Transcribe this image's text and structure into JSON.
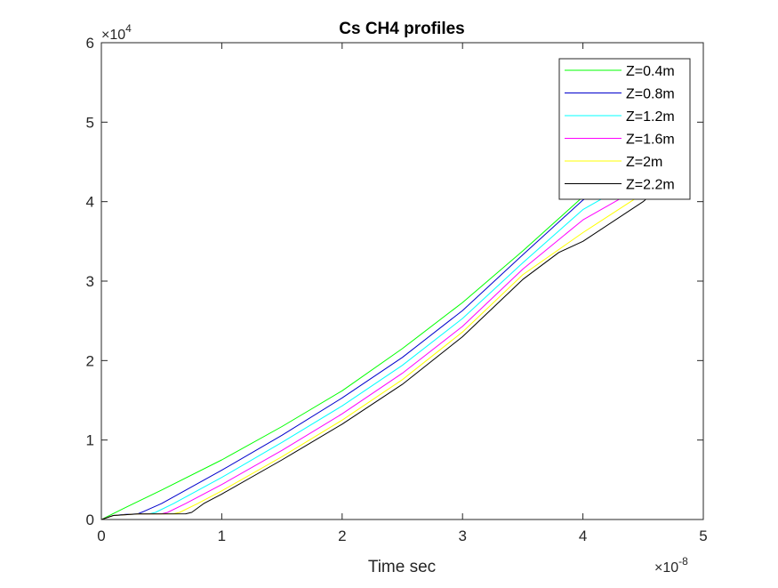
{
  "chart_data": {
    "type": "line",
    "title": "Cs CH4 profiles",
    "xlabel": "Time sec",
    "ylabel": "",
    "xlim": [
      0,
      5e-08
    ],
    "ylim": [
      0,
      60000
    ],
    "x_ticks": [
      {
        "value": 0,
        "label": "0"
      },
      {
        "value": 1e-08,
        "label": "1"
      },
      {
        "value": 2e-08,
        "label": "2"
      },
      {
        "value": 3e-08,
        "label": "3"
      },
      {
        "value": 4e-08,
        "label": "4"
      },
      {
        "value": 5e-08,
        "label": "5"
      }
    ],
    "y_ticks": [
      {
        "value": 0,
        "label": "0"
      },
      {
        "value": 10000,
        "label": "1"
      },
      {
        "value": 20000,
        "label": "2"
      },
      {
        "value": 30000,
        "label": "3"
      },
      {
        "value": 40000,
        "label": "4"
      },
      {
        "value": 50000,
        "label": "5"
      },
      {
        "value": 60000,
        "label": "6"
      }
    ],
    "x_exponent": {
      "base": "×10",
      "power": "-8"
    },
    "y_exponent": {
      "base": "×10",
      "power": "4"
    },
    "grid": false,
    "legend_position": "top-right",
    "series": [
      {
        "name": "Z=0.4m",
        "color": "#00ff00",
        "x": [
          0,
          2e-09,
          5e-09,
          1e-08,
          1.5e-08,
          2e-08,
          2.5e-08,
          3e-08,
          3.5e-08,
          4e-08,
          4.1e-08
        ],
        "y": [
          0,
          1500,
          3700,
          7500,
          11700,
          16200,
          21500,
          27300,
          33800,
          40600,
          42000
        ]
      },
      {
        "name": "Z=0.8m",
        "color": "#0000cc",
        "x": [
          0,
          1e-09,
          2e-09,
          3e-09,
          3.5e-09,
          5e-09,
          1e-08,
          1.5e-08,
          2e-08,
          2.5e-08,
          3e-08,
          3.5e-08,
          4e-08,
          4.2e-08
        ],
        "y": [
          0,
          500,
          650,
          700,
          1000,
          2000,
          6200,
          10600,
          15300,
          20400,
          26300,
          33300,
          40200,
          42000
        ]
      },
      {
        "name": "Z=1.2m",
        "color": "#00ffff",
        "x": [
          0,
          1e-09,
          3e-09,
          4e-09,
          4.5e-09,
          6e-09,
          1e-08,
          1.5e-08,
          2e-08,
          2.5e-08,
          3e-08,
          3.5e-08,
          4e-08,
          4.35e-08
        ],
        "y": [
          0,
          500,
          700,
          720,
          900,
          2000,
          5300,
          9700,
          14300,
          19400,
          25300,
          32300,
          39000,
          42000
        ]
      },
      {
        "name": "Z=1.6m",
        "color": "#ff00ff",
        "x": [
          0,
          1e-09,
          3e-09,
          5e-09,
          5.5e-09,
          7e-09,
          1e-08,
          1.5e-08,
          2e-08,
          2.5e-08,
          3e-08,
          3.5e-08,
          4e-08,
          4.5e-08
        ],
        "y": [
          0,
          500,
          700,
          720,
          900,
          2000,
          4400,
          8700,
          13300,
          18400,
          24300,
          31500,
          37700,
          42000
        ]
      },
      {
        "name": "Z=2m",
        "color": "#ffff00",
        "x": [
          0,
          1e-09,
          3e-09,
          6e-09,
          6.5e-09,
          8e-09,
          1e-08,
          1.5e-08,
          2e-08,
          2.5e-08,
          3e-08,
          3.5e-08,
          4e-08,
          4.6e-08
        ],
        "y": [
          0,
          500,
          700,
          720,
          900,
          2000,
          3600,
          7900,
          12500,
          17600,
          23600,
          30800,
          36100,
          42000
        ]
      },
      {
        "name": "Z=2.2m",
        "color": "#000000",
        "x": [
          0,
          1e-09,
          3e-09,
          7e-09,
          7.5e-09,
          8.5e-09,
          1e-08,
          1.5e-08,
          2e-08,
          2.5e-08,
          3e-08,
          3.5e-08,
          3.8e-08,
          4e-08,
          4.5e-08,
          4.65e-08
        ],
        "y": [
          0,
          500,
          700,
          720,
          900,
          2000,
          3200,
          7500,
          12000,
          17000,
          23000,
          30200,
          33600,
          35000,
          40000,
          42000
        ]
      }
    ]
  }
}
